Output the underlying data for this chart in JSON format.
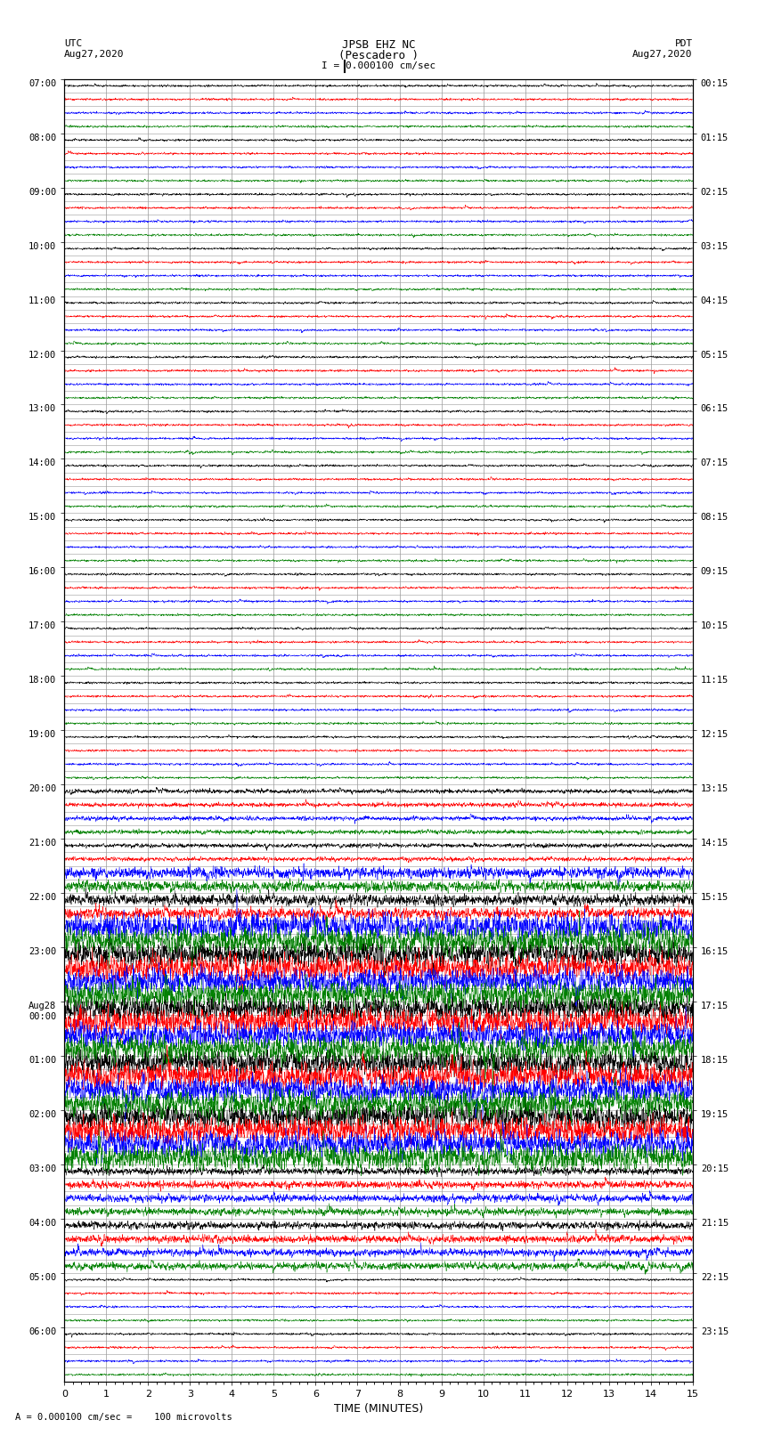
{
  "title_line1": "JPSB EHZ NC",
  "title_line2": "(Pescadero )",
  "scale_label": "I = 0.000100 cm/sec",
  "left_header": "UTC",
  "left_date": "Aug27,2020",
  "right_header": "PDT",
  "right_date": "Aug27,2020",
  "bottom_label": "TIME (MINUTES)",
  "bottom_note": "= 0.000100 cm/sec =    100 microvolts",
  "trace_colors": [
    "black",
    "red",
    "blue",
    "green"
  ],
  "n_rows": 96,
  "n_points": 3000,
  "xmin": 0,
  "xmax": 15,
  "background_color": "white",
  "grid_color": "#999999",
  "figsize": [
    8.5,
    16.13
  ],
  "dpi": 100,
  "hour_labels_utc": [
    "07:00",
    "08:00",
    "09:00",
    "10:00",
    "11:00",
    "12:00",
    "13:00",
    "14:00",
    "15:00",
    "16:00",
    "17:00",
    "18:00",
    "19:00",
    "20:00",
    "21:00",
    "22:00",
    "23:00",
    "Aug28\n00:00",
    "01:00",
    "02:00",
    "03:00",
    "04:00",
    "05:00",
    "06:00"
  ],
  "hour_labels_pdt": [
    "00:15",
    "01:15",
    "02:15",
    "03:15",
    "04:15",
    "05:15",
    "06:15",
    "07:15",
    "08:15",
    "09:15",
    "10:15",
    "11:15",
    "12:15",
    "13:15",
    "14:15",
    "15:15",
    "16:15",
    "17:15",
    "18:15",
    "19:15",
    "20:15",
    "21:15",
    "22:15",
    "23:15"
  ]
}
